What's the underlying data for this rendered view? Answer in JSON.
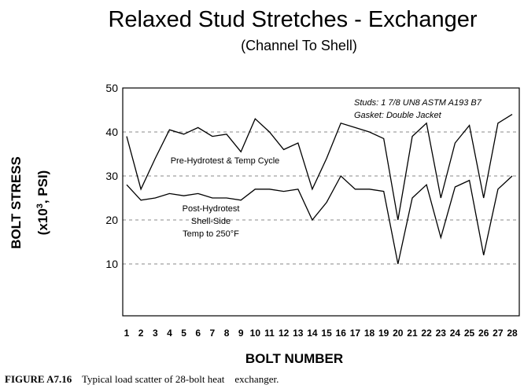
{
  "chart_data": {
    "type": "line",
    "title": "Relaxed Stud Stretches - Exchanger",
    "subtitle": "(Channel To Shell)",
    "xlabel": "BOLT NUMBER",
    "ylabel_line1": "BOLT STRESS",
    "ylabel_line2_prefix": "(x10",
    "ylabel_line2_sup": "3",
    "ylabel_line2_suffix": ", PSI)",
    "x": [
      1,
      2,
      3,
      4,
      5,
      6,
      7,
      8,
      9,
      10,
      11,
      12,
      13,
      14,
      15,
      16,
      17,
      18,
      19,
      20,
      21,
      22,
      23,
      24,
      25,
      26,
      27,
      28
    ],
    "ylim": [
      0,
      50
    ],
    "yticks": [
      10,
      20,
      30,
      40,
      50
    ],
    "grid": "dashed horizontal at 10, 20, 30, 40",
    "series": [
      {
        "name": "Pre-Hydrotest & Temp Cycle",
        "values": [
          39,
          27,
          34,
          40.5,
          39.5,
          41,
          39,
          39.5,
          35.5,
          43,
          40,
          36,
          37.5,
          27,
          34,
          42,
          41,
          40,
          38.5,
          20,
          39,
          42,
          25,
          37.5,
          41.5,
          25,
          42,
          44
        ]
      },
      {
        "name": "Post-Hydrotest Shell-Side Temp to 250°F",
        "values": [
          28,
          24.5,
          25,
          26,
          25.5,
          26,
          25,
          25,
          24.5,
          27,
          27,
          26.5,
          27,
          20,
          24,
          30,
          27,
          27,
          26.5,
          10,
          25,
          28,
          16,
          27.5,
          29,
          12,
          27,
          30
        ]
      }
    ],
    "annotations": {
      "pre_label": "Pre-Hydrotest & Temp Cycle",
      "post_label_lines": [
        "Post-Hydrotest",
        "Shell-Side",
        "Temp to 250°F"
      ],
      "note_line1": "Studs:  1 7/8 UN8 ASTM A193 B7",
      "note_line2": "Gasket:  Double Jacket"
    }
  },
  "caption": {
    "label": "FIGURE A7.16",
    "text": "Typical load scatter of 28-bolt heat    exchanger."
  }
}
